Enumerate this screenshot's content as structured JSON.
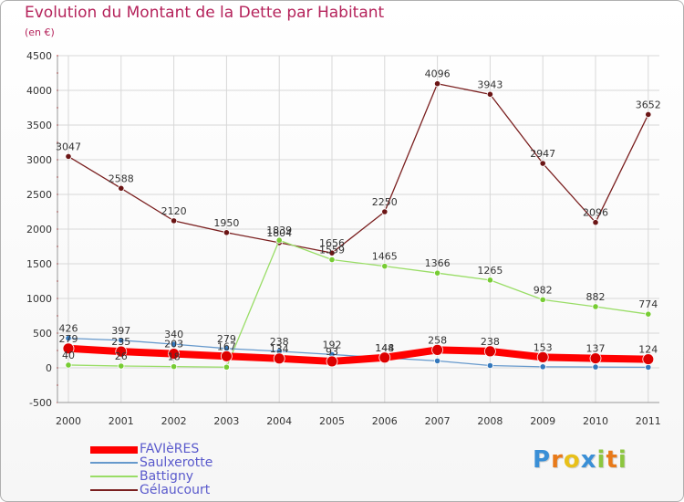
{
  "header": {
    "title": "Evolution du Montant de la Dette par Habitant",
    "subtitle": "(en €)"
  },
  "brand": {
    "letters": [
      "P",
      "r",
      "o",
      "x",
      "i",
      "t",
      "i"
    ],
    "colors": [
      "#3a8fd6",
      "#e87a1a",
      "#e8c01a",
      "#3a8fd6",
      "#8cc63f",
      "#e87a1a",
      "#8cc63f"
    ]
  },
  "colors": {
    "title": "#b5235b",
    "axis_text": "#333333",
    "grid": "#d8d8d8",
    "axis_ticks": "#cc3333"
  },
  "chart_data": {
    "type": "line",
    "title": "Evolution du Montant de la Dette par Habitant",
    "subtitle": "(en €)",
    "xlabel": "",
    "ylabel": "",
    "x": [
      "2000",
      "2001",
      "2002",
      "2003",
      "2004",
      "2005",
      "2006",
      "2007",
      "2008",
      "2009",
      "2010",
      "2011"
    ],
    "ylim": [
      -500,
      4500
    ],
    "yticks": [
      -500,
      0,
      500,
      1000,
      1500,
      2000,
      2500,
      3000,
      3500,
      4000,
      4500
    ],
    "grid": true,
    "legend_position": "bottom-left",
    "series": [
      {
        "name": "Gélaucourt",
        "color": "#7a1f1f",
        "marker_color": "#6b1515",
        "width": 1.3,
        "values": [
          3047,
          2588,
          2120,
          1950,
          1804,
          1656,
          2250,
          4096,
          3943,
          2947,
          2096,
          3652
        ],
        "labels": [
          "3047",
          "2588",
          "2120",
          "1950",
          "1804",
          "1656",
          "2250",
          "4096",
          "3943",
          "2947",
          "2096",
          "3652"
        ]
      },
      {
        "name": "Battigny",
        "color": "#99dd66",
        "marker_color": "#77cc33",
        "width": 1.3,
        "values": [
          40,
          26,
          18,
          10,
          1839,
          1559,
          1465,
          1366,
          1265,
          982,
          882,
          774
        ],
        "labels": [
          "40",
          "26",
          "18",
          "",
          "1839",
          "1559",
          "1465",
          "1366",
          "1265",
          "982",
          "882",
          "774"
        ]
      },
      {
        "name": "Saulxerotte",
        "color": "#6699cc",
        "marker_color": "#3377bb",
        "width": 1.3,
        "values": [
          426,
          397,
          340,
          279,
          238,
          192,
          144,
          100,
          33,
          15,
          12,
          8
        ],
        "labels": [
          "426",
          "397",
          "340",
          "279",
          "238",
          "192",
          "144",
          "",
          "",
          "",
          "",
          ""
        ]
      },
      {
        "name": "FAVIèRES",
        "color": "#ff0000",
        "marker_color": "#dd0000",
        "width": 8,
        "values": [
          279,
          235,
          203,
          167,
          134,
          93,
          148,
          258,
          238,
          153,
          137,
          124
        ],
        "labels": [
          "279",
          "235",
          "203",
          "167",
          "134",
          "93",
          "148",
          "258",
          "238",
          "153",
          "137",
          "124"
        ]
      }
    ],
    "legend_order": [
      "FAVIèRES",
      "Saulxerotte",
      "Battigny",
      "Gélaucourt"
    ]
  }
}
